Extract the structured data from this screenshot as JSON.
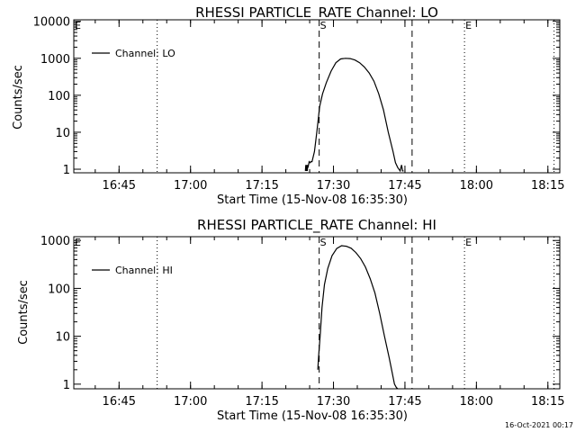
{
  "footer": {
    "timestamp": "16-Oct-2021 00:17"
  },
  "chart_data": [
    {
      "type": "line",
      "title": "RHESSI PARTICLE_RATE Channel: LO",
      "xlabel": "Start Time (15-Nov-08 16:35:30)",
      "ylabel": "Counts/sec",
      "x_unit": "minutes after 16:35:30",
      "xlim": [
        0,
        102
      ],
      "ylim": [
        0.8,
        11000
      ],
      "y_scale": "log",
      "x_ticks": [
        "16:45",
        "17:00",
        "17:15",
        "17:30",
        "17:45",
        "18:00",
        "18:15"
      ],
      "y_ticks": [
        "1",
        "10",
        "100",
        "1000",
        "10000"
      ],
      "legend": {
        "position": "top-left",
        "entries": [
          "Channel: LO"
        ]
      },
      "markers": [
        {
          "label": "E",
          "x": 0.0,
          "style": "dotted"
        },
        {
          "label": "",
          "x": 17.5,
          "style": "dotted"
        },
        {
          "label": "S",
          "x": 51.5,
          "style": "dashed"
        },
        {
          "label": "",
          "x": 71.0,
          "style": "dashed"
        },
        {
          "label": "E",
          "x": 82.0,
          "style": "dotted"
        },
        {
          "label": "",
          "x": 100.8,
          "style": "dotted"
        }
      ],
      "series": [
        {
          "name": "Channel: LO",
          "x": [
            48.6,
            48.7,
            48.8,
            48.9,
            49.0,
            49.1,
            49.2,
            49.4,
            49.6,
            49.8,
            50.0,
            50.5,
            51.0,
            51.6,
            52.2,
            53.0,
            54.0,
            55.0,
            56.0,
            57.0,
            58.0,
            59.0,
            60.0,
            61.0,
            62.0,
            63.0,
            64.0,
            65.0,
            66.0,
            67.0,
            67.5,
            68.0,
            68.5,
            68.8,
            69.0,
            69.2
          ],
          "y": [
            0.9,
            1.3,
            0.9,
            1.3,
            0.9,
            1.3,
            1.2,
            1.6,
            1.5,
            1.6,
            1.6,
            3,
            10,
            50,
            110,
            220,
            450,
            760,
            960,
            1000,
            980,
            900,
            760,
            580,
            400,
            240,
            110,
            40,
            10,
            3,
            1.5,
            1.1,
            0.9,
            1.3,
            0.9,
            0.9
          ]
        }
      ]
    },
    {
      "type": "line",
      "title": "RHESSI PARTICLE_RATE Channel: HI",
      "xlabel": "Start Time (15-Nov-08 16:35:30)",
      "ylabel": "Counts/sec",
      "x_unit": "minutes after 16:35:30",
      "xlim": [
        0,
        102
      ],
      "ylim": [
        0.8,
        1200
      ],
      "y_scale": "log",
      "x_ticks": [
        "16:45",
        "17:00",
        "17:15",
        "17:30",
        "17:45",
        "18:00",
        "18:15"
      ],
      "y_ticks": [
        "1",
        "10",
        "100",
        "1000"
      ],
      "legend": {
        "position": "top-left",
        "entries": [
          "Channel: HI"
        ]
      },
      "markers": [
        {
          "label": "E",
          "x": 0.0,
          "style": "dotted"
        },
        {
          "label": "",
          "x": 17.5,
          "style": "dotted"
        },
        {
          "label": "S",
          "x": 51.5,
          "style": "dashed"
        },
        {
          "label": "",
          "x": 71.0,
          "style": "dashed"
        },
        {
          "label": "E",
          "x": 82.0,
          "style": "dotted"
        },
        {
          "label": "",
          "x": 100.8,
          "style": "dotted"
        }
      ],
      "series": [
        {
          "name": "Channel: HI",
          "x": [
            51.2,
            51.4,
            51.7,
            52.1,
            52.6,
            53.3,
            54.2,
            55.2,
            56.2,
            57.2,
            58.2,
            59.2,
            60.2,
            61.2,
            62.2,
            63.2,
            64.2,
            65.2,
            66.2,
            66.8,
            67.3,
            67.7,
            68.0
          ],
          "y": [
            2,
            4,
            10,
            40,
            120,
            260,
            480,
            680,
            780,
            760,
            690,
            560,
            420,
            280,
            160,
            80,
            30,
            10,
            3.5,
            1.8,
            1.0,
            0.85,
            0.8
          ]
        }
      ]
    }
  ]
}
